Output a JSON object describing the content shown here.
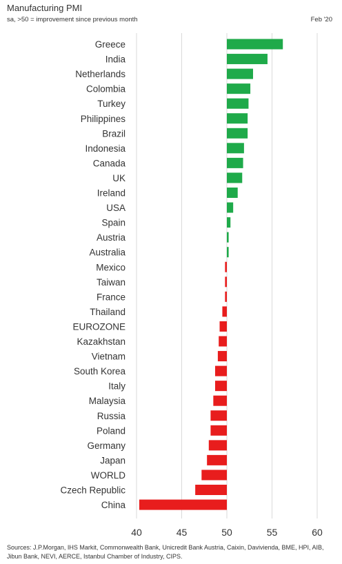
{
  "header": {
    "title": "Manufacturing PMI",
    "subtitle": "sa, >50 = improvement since previous month",
    "date": "Feb '20"
  },
  "footer": {
    "sources": "Sources: J.P.Morgan, IHS Markit, Commonwealth Bank, Unicredit Bank Austria, Caixin, Davivienda, BME, HPI, AIB, Jibun Bank, NEVI, AERCE, Istanbul Chamber of Industry, CIPS."
  },
  "colors": {
    "positive": "#1faa4a",
    "negative": "#e81d1d",
    "grid": "#d9d9d9",
    "text": "#333333"
  },
  "chart_data": {
    "type": "bar",
    "orientation": "horizontal",
    "baseline": 50,
    "xlim": [
      40,
      62
    ],
    "xticks": [
      40,
      45,
      50,
      55,
      60
    ],
    "grid": true,
    "categories": [
      "Greece",
      "India",
      "Netherlands",
      "Colombia",
      "Turkey",
      "Philippines",
      "Brazil",
      "Indonesia",
      "Canada",
      "UK",
      "Ireland",
      "USA",
      "Spain",
      "Austria",
      "Australia",
      "Mexico",
      "Taiwan",
      "France",
      "Thailand",
      "EUROZONE",
      "Kazakhstan",
      "Vietnam",
      "South Korea",
      "Italy",
      "Malaysia",
      "Russia",
      "Poland",
      "Germany",
      "Japan",
      "WORLD",
      "Czech Republic",
      "China"
    ],
    "values": [
      56.2,
      54.5,
      52.9,
      52.6,
      52.4,
      52.3,
      52.3,
      51.9,
      51.8,
      51.7,
      51.2,
      50.7,
      50.4,
      50.2,
      50.2,
      49.8,
      49.8,
      49.8,
      49.5,
      49.2,
      49.1,
      49.0,
      48.7,
      48.7,
      48.5,
      48.2,
      48.2,
      48.0,
      47.8,
      47.2,
      46.5,
      40.3
    ],
    "title": "Manufacturing PMI",
    "subtitle": "sa, >50 = improvement since previous month",
    "xlabel": "",
    "ylabel": ""
  }
}
